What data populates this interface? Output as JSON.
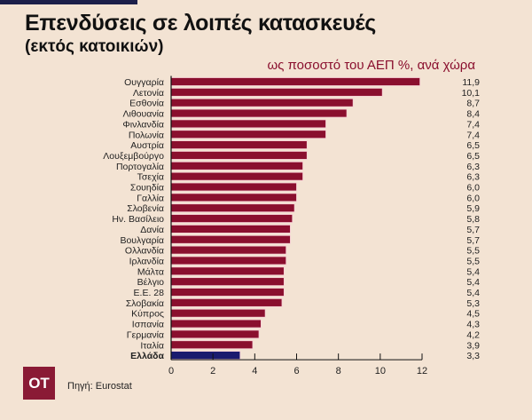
{
  "title": "Επενδύσεις σε λοιπές κατασκευές",
  "subtitle": "(εκτός κατοικιών)",
  "unit_label": "ως ποσοστό του ΑΕΠ  %, ανά χώρα",
  "source": "Πηγή: Eurostat",
  "logo": "ΟΤ",
  "colors": {
    "bar": "#8a0f2e",
    "highlight": "#1a1a6e",
    "background": "#f3e3d3"
  },
  "chart_data": {
    "type": "bar",
    "orientation": "horizontal",
    "categories": [
      "Ουγγαρία",
      "Λετονία",
      "Εσθονία",
      "Λιθουανία",
      "Φινλανδία",
      "Πολωνία",
      "Αυστρία",
      "Λουξεμβούργο",
      "Πορτογαλία",
      "Τσεχία",
      "Σουηδία",
      "Γαλλία",
      "Σλοβενία",
      "Ην. Βασίλειο",
      "Δανία",
      "Βουλγαρία",
      "Ολλανδία",
      "Ιρλανδία",
      "Μάλτα",
      "Βέλγιο",
      "Ε.Ε. 28",
      "Σλοβακία",
      "Κύπρος",
      "Ισπανία",
      "Γερμανία",
      "Ιταλία",
      "Ελλάδα"
    ],
    "values": [
      11.9,
      10.1,
      8.7,
      8.4,
      7.4,
      7.4,
      6.5,
      6.5,
      6.3,
      6.3,
      6.0,
      6.0,
      5.9,
      5.8,
      5.7,
      5.7,
      5.5,
      5.5,
      5.4,
      5.4,
      5.4,
      5.3,
      4.5,
      4.3,
      4.2,
      3.9,
      3.3
    ],
    "value_labels": [
      "11,9",
      "10,1",
      "8,7",
      "8,4",
      "7,4",
      "7,4",
      "6,5",
      "6,5",
      "6,3",
      "6,3",
      "6,0",
      "6,0",
      "5,9",
      "5,8",
      "5,7",
      "5,7",
      "5,5",
      "5,5",
      "5,4",
      "5,4",
      "5,4",
      "5,3",
      "4,5",
      "4,3",
      "4,2",
      "3,9",
      "3,3"
    ],
    "highlight": "Ελλάδα",
    "xlim": [
      0,
      12
    ],
    "xticks": [
      "0",
      "2",
      "4",
      "6",
      "8",
      "10",
      "12"
    ],
    "grid": false
  }
}
